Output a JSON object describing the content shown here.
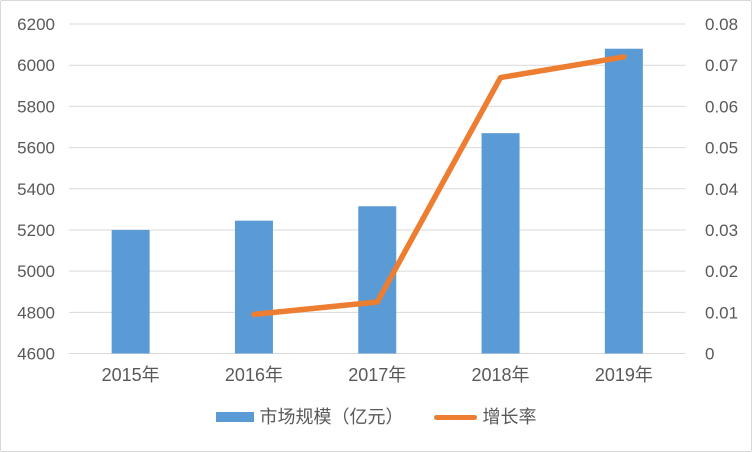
{
  "chart_data": {
    "type": "combo",
    "title": "",
    "categories": [
      "2015年",
      "2016年",
      "2017年",
      "2018年",
      "2019年"
    ],
    "series": [
      {
        "name": "市场规模（亿元）",
        "type": "bar",
        "axis": "left",
        "color": "#5B9BD5",
        "values": [
          5200,
          5245,
          5315,
          5670,
          6080
        ]
      },
      {
        "name": "增长率",
        "type": "line",
        "axis": "right",
        "color": "#ED7D31",
        "values": [
          null,
          0.0095,
          0.0125,
          0.067,
          0.072
        ]
      }
    ],
    "left_axis": {
      "min": 4600,
      "max": 6200,
      "step": 200,
      "tick_labels": [
        "4600",
        "4800",
        "5000",
        "5200",
        "5400",
        "5600",
        "5800",
        "6000",
        "6200"
      ]
    },
    "right_axis": {
      "min": 0,
      "max": 0.08,
      "step": 0.01,
      "tick_labels": [
        "0",
        "0.01",
        "0.02",
        "0.03",
        "0.04",
        "0.05",
        "0.06",
        "0.07",
        "0.08"
      ]
    },
    "grid": true,
    "legend_position": "bottom"
  },
  "colors": {
    "bar_fill": "#5B9BD5",
    "line_stroke": "#ED7D31",
    "gridline": "#D9D9D9",
    "axis_line": "#D9D9D9",
    "tick_text": "#595959",
    "border": "#D9D9D9",
    "background": "#FFFFFF"
  }
}
